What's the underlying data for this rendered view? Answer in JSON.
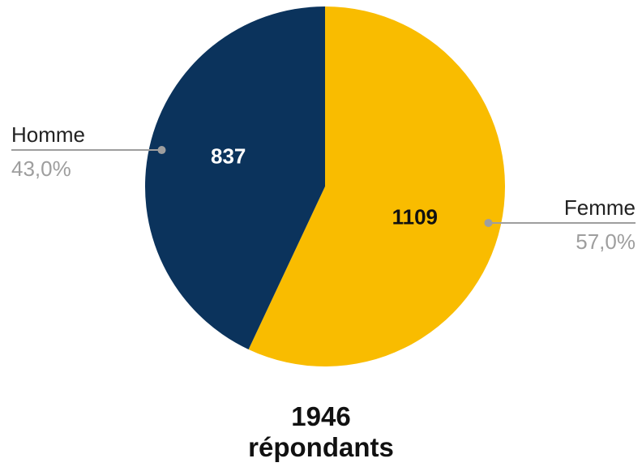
{
  "chart_data": {
    "type": "pie",
    "slices": [
      {
        "name": "Femme",
        "value": 1109,
        "percent": "57,0%",
        "color": "#F9BC00",
        "value_text_color": "#111111"
      },
      {
        "name": "Homme",
        "value": 837,
        "percent": "43,0%",
        "color": "#0B335C",
        "value_text_color": "#ffffff"
      }
    ],
    "start": "top",
    "direction": "clockwise",
    "total": {
      "value": "1946",
      "label": "répondants"
    }
  }
}
